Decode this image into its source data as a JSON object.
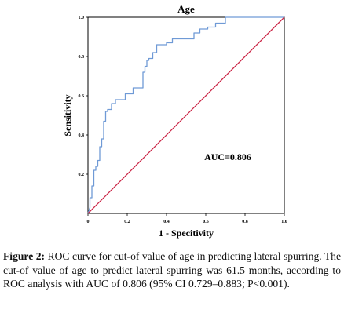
{
  "chart_data": {
    "type": "line",
    "title": "Age",
    "xlabel": "1 - Specitivity",
    "ylabel": "Sensitivity",
    "xlim": [
      0,
      1
    ],
    "ylim": [
      0,
      1
    ],
    "x_ticks": [
      "0",
      "0.2",
      "0.4",
      "0.6",
      "0.8",
      "1.0"
    ],
    "y_ticks": [
      "0.2",
      "0.4",
      "0.6",
      "0.8",
      "1.0"
    ],
    "annotation": "AUC=0.806",
    "grid": false,
    "series": [
      {
        "color": "#6f9ad6",
        "x": [
          0,
          0.01,
          0.01,
          0.02,
          0.02,
          0.03,
          0.03,
          0.04,
          0.04,
          0.05,
          0.05,
          0.06,
          0.06,
          0.07,
          0.07,
          0.08,
          0.08,
          0.09,
          0.09,
          0.1,
          0.1,
          0.12,
          0.12,
          0.14,
          0.14,
          0.19,
          0.19,
          0.23,
          0.23,
          0.28,
          0.28,
          0.29,
          0.29,
          0.3,
          0.3,
          0.31,
          0.31,
          0.33,
          0.33,
          0.35,
          0.35,
          0.4,
          0.4,
          0.43,
          0.43,
          0.54,
          0.54,
          0.57,
          0.57,
          0.61,
          0.61,
          0.65,
          0.65,
          0.7,
          0.7,
          1.0
        ],
        "y": [
          0,
          0.03,
          0.08,
          0.08,
          0.14,
          0.14,
          0.22,
          0.22,
          0.24,
          0.24,
          0.27,
          0.27,
          0.34,
          0.34,
          0.38,
          0.38,
          0.47,
          0.47,
          0.52,
          0.52,
          0.53,
          0.53,
          0.56,
          0.56,
          0.58,
          0.58,
          0.61,
          0.61,
          0.64,
          0.64,
          0.72,
          0.72,
          0.75,
          0.75,
          0.78,
          0.78,
          0.79,
          0.79,
          0.82,
          0.82,
          0.86,
          0.86,
          0.87,
          0.87,
          0.89,
          0.89,
          0.92,
          0.92,
          0.94,
          0.94,
          0.95,
          0.95,
          0.97,
          0.97,
          1.0,
          1.0
        ]
      },
      {
        "color": "#cc2a4a",
        "x": [
          0,
          1
        ],
        "y": [
          0,
          1
        ]
      }
    ]
  },
  "caption": {
    "label": "Figure 2:",
    "text": " ROC curve for cut-of value of age in predicting lateral spurring. The cut-of value of age to predict lateral spurring was 61.5 months, according to ROC analysis with AUC of 0.806 (95% CI 0.729–0.883; P<0.001)."
  }
}
